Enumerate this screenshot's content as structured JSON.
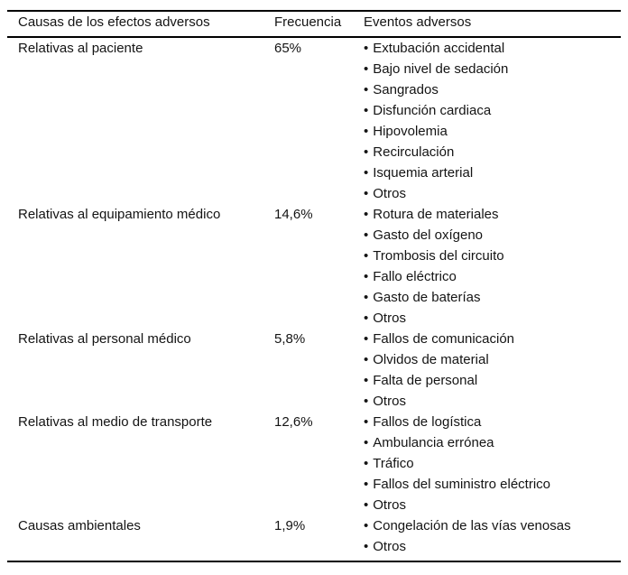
{
  "page": {
    "background_color": "#ffffff",
    "text_color": "#141414",
    "rule_color": "#000000"
  },
  "table": {
    "bullet_glyph": "•",
    "columns": [
      {
        "label": "Causas de los efectos adversos"
      },
      {
        "label": "Frecuencia"
      },
      {
        "label": "Eventos adversos"
      }
    ],
    "rows": [
      {
        "causa": "Relativas al paciente",
        "frecuencia": "65%",
        "eventos": [
          "Extubación accidental",
          "Bajo nivel de sedación",
          "Sangrados",
          "Disfunción cardiaca",
          "Hipovolemia",
          "Recirculación",
          "Isquemia arterial",
          "Otros"
        ]
      },
      {
        "causa": "Relativas al equipamiento médico",
        "frecuencia": "14,6%",
        "eventos": [
          "Rotura de materiales",
          "Gasto del oxígeno",
          "Trombosis del circuito",
          "Fallo eléctrico",
          "Gasto de baterías",
          "Otros"
        ]
      },
      {
        "causa": "Relativas al personal médico",
        "frecuencia": "5,8%",
        "eventos": [
          "Fallos de comunicación",
          "Olvidos de material",
          "Falta de personal",
          "Otros"
        ]
      },
      {
        "causa": "Relativas al medio de transporte",
        "frecuencia": "12,6%",
        "eventos": [
          "Fallos de logística",
          "Ambulancia errónea",
          "Tráfico",
          "Fallos del suministro eléctrico",
          "Otros"
        ]
      },
      {
        "causa": "Causas ambientales",
        "frecuencia": "1,9%",
        "eventos": [
          "Congelación de las vías venosas",
          "Otros"
        ]
      }
    ]
  }
}
